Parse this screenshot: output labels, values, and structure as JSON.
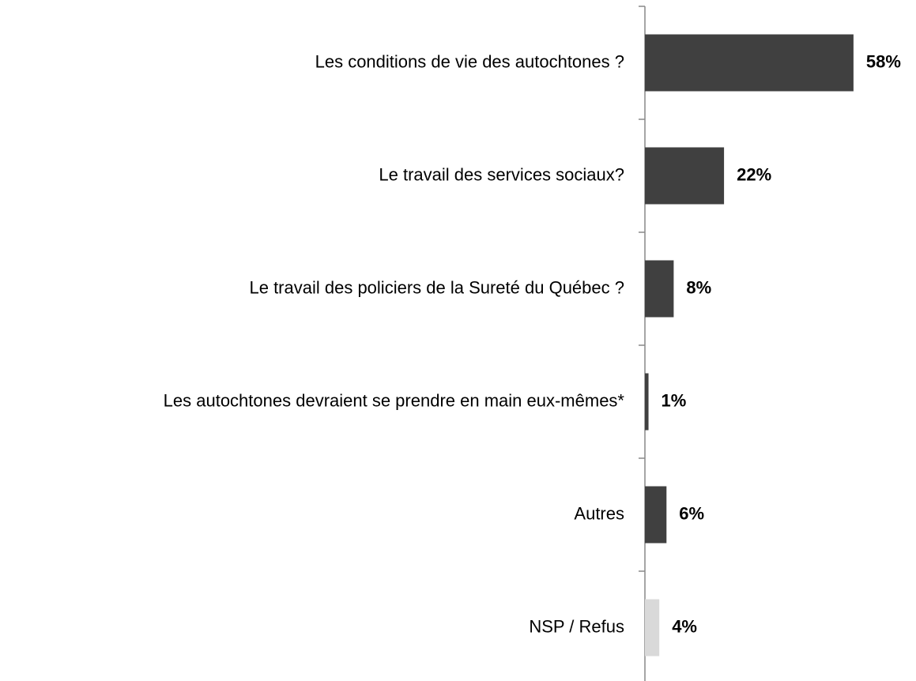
{
  "chart_data": {
    "type": "barh",
    "categories": [
      "Les conditions de vie des autochtones ?",
      "Le travail des services sociaux?",
      "Le travail des policiers de la Sureté du Québec ?",
      "Les autochtones devraient se prendre en main eux-mêmes*",
      "Autres",
      "NSP / Refus"
    ],
    "values": [
      58,
      22,
      8,
      1,
      6,
      4
    ],
    "value_labels": [
      "58%",
      "22%",
      "8%",
      "1%",
      "6%",
      "4%"
    ],
    "colors": [
      "#404040",
      "#404040",
      "#404040",
      "#404040",
      "#404040",
      "#d9d9d9"
    ]
  }
}
